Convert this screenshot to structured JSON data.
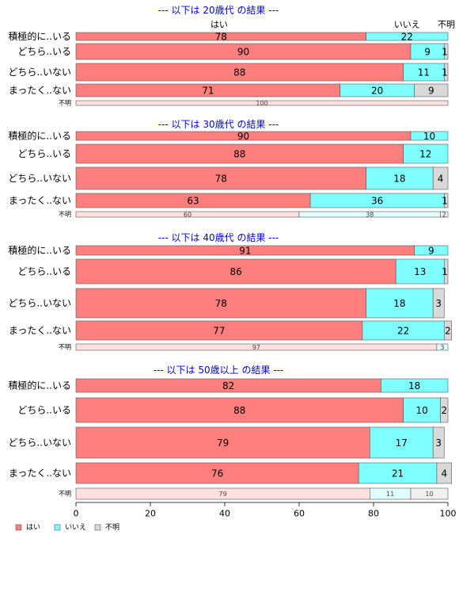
{
  "chart_data": {
    "type": "bar",
    "orientation": "horizontal",
    "stacked": true,
    "xlim": [
      0,
      100
    ],
    "xticks": [
      0,
      20,
      40,
      60,
      80,
      100
    ],
    "column_headers": [
      "はい",
      "いいえ",
      "不明"
    ],
    "series_names": [
      "はい",
      "いいえ",
      "不明"
    ],
    "colors": {
      "はい": "#ff7f7f",
      "いいえ": "#7fffff",
      "不明": "#d9d9d9"
    },
    "unknown_row_colors": {
      "はい": "#ffe0e0",
      "いいえ": "#e0ffff",
      "不明": "#f0f0f0"
    },
    "legend_position": "bottom-left",
    "panels": [
      {
        "title": "--- 以下は 20歳代 の結果 ---",
        "rows": [
          {
            "label": "積極的に..いる",
            "values": [
              78,
              22,
              0
            ]
          },
          {
            "label": "どちら..いる",
            "values": [
              90,
              9,
              1
            ]
          },
          {
            "label": "どちら..いない",
            "values": [
              88,
              11,
              1
            ]
          },
          {
            "label": "まったく..ない",
            "values": [
              71,
              20,
              9
            ]
          },
          {
            "label": "不明",
            "values": [
              100,
              0,
              0
            ]
          }
        ]
      },
      {
        "title": "--- 以下は 30歳代 の結果 ---",
        "rows": [
          {
            "label": "積極的に..いる",
            "values": [
              90,
              10,
              0
            ]
          },
          {
            "label": "どちら..いる",
            "values": [
              88,
              12,
              0
            ]
          },
          {
            "label": "どちら..いない",
            "values": [
              78,
              18,
              4
            ]
          },
          {
            "label": "まったく..ない",
            "values": [
              63,
              36,
              1
            ]
          },
          {
            "label": "不明",
            "values": [
              60,
              38,
              2
            ]
          }
        ]
      },
      {
        "title": "--- 以下は 40歳代 の結果 ---",
        "rows": [
          {
            "label": "積極的に..いる",
            "values": [
              91,
              9,
              0
            ]
          },
          {
            "label": "どちら..いる",
            "values": [
              86,
              13,
              1
            ]
          },
          {
            "label": "どちら..いない",
            "values": [
              78,
              18,
              3
            ]
          },
          {
            "label": "まったく..ない",
            "values": [
              77,
              22,
              2
            ]
          },
          {
            "label": "不明",
            "values": [
              97,
              3,
              0
            ]
          }
        ]
      },
      {
        "title": "--- 以下は 50歳以上 の結果 ---",
        "rows": [
          {
            "label": "積極的に..いる",
            "values": [
              82,
              18,
              0
            ]
          },
          {
            "label": "どちら..いる",
            "values": [
              88,
              10,
              2
            ]
          },
          {
            "label": "どちら..いない",
            "values": [
              79,
              17,
              3
            ]
          },
          {
            "label": "まったく..ない",
            "values": [
              76,
              21,
              4
            ]
          },
          {
            "label": "不明",
            "values": [
              79,
              11,
              10
            ]
          }
        ]
      }
    ]
  }
}
